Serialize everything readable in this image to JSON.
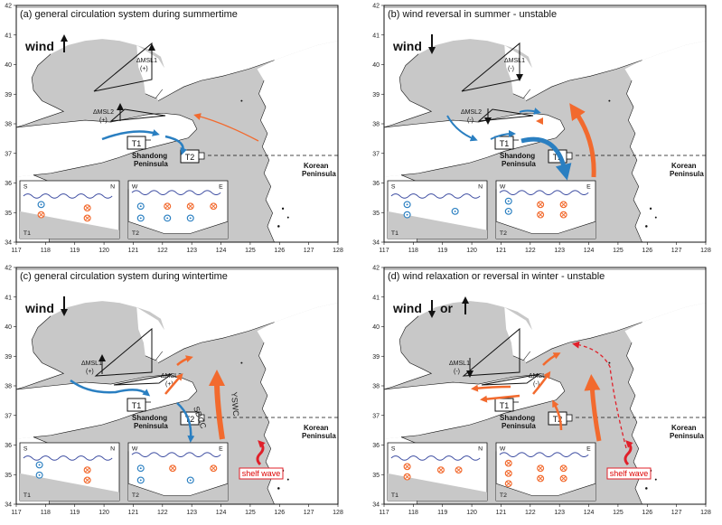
{
  "panels": [
    {
      "id": "a",
      "title": "(a) general circulation system during summertime",
      "wind_label": "wind",
      "wind_direction": "up",
      "dmsl1": "ΔMSL1",
      "dmsl1_sign": "(+)",
      "dmsl2": "ΔMSL2",
      "dmsl2_sign": "(+)",
      "shelf_wave": ""
    },
    {
      "id": "b",
      "title": "(b) wind reversal in summer - unstable",
      "wind_label": "wind",
      "wind_direction": "down",
      "dmsl1": "ΔMSL1",
      "dmsl1_sign": "(-)",
      "dmsl2": "ΔMSL2",
      "dmsl2_sign": "(-)",
      "shelf_wave": ""
    },
    {
      "id": "c",
      "title": "(c) general circulation system during wintertime",
      "wind_label": "wind",
      "wind_direction": "down",
      "dmsl1": "ΔMSL1",
      "dmsl1_sign": "(+)",
      "dmsl2": "ΔMSL2",
      "dmsl2_sign": "(+)",
      "sdcc": "SDCC",
      "yswc": "YSWC",
      "shelf_wave": "shelf wave"
    },
    {
      "id": "d",
      "title": "(d) wind relaxation or reversal in winter - unstable",
      "wind_label": "wind",
      "wind_or": "or",
      "wind_direction": "down-or-up",
      "dmsl1": "ΔMSL1",
      "dmsl1_sign": "(-)",
      "dmsl2": "ΔMSL2",
      "dmsl2_sign": "(-)",
      "shelf_wave": "shelf wave"
    }
  ],
  "common": {
    "t1": "T1",
    "t2": "T2",
    "shandong": "Shandong",
    "peninsula": "Peninsula",
    "korean": "Korean",
    "korean_peninsula": "Peninsula",
    "inset1_left": "S",
    "inset1_right": "N",
    "inset1_name": "T1",
    "inset2_left": "W",
    "inset2_right": "E",
    "inset2_name": "T2"
  },
  "axes": {
    "lon_ticks": [
      "117",
      "118",
      "119",
      "120",
      "121",
      "122",
      "123",
      "124",
      "125",
      "126",
      "127",
      "128"
    ],
    "lat_ticks": [
      "34",
      "35",
      "36",
      "37",
      "38",
      "39",
      "40",
      "41",
      "42"
    ]
  },
  "colors": {
    "land": "#ffffff",
    "sea": "#c8c8c8",
    "warm_current": "#f26a2e",
    "cold_current": "#2a7fc1",
    "shelf_wave": "#e0202a"
  }
}
